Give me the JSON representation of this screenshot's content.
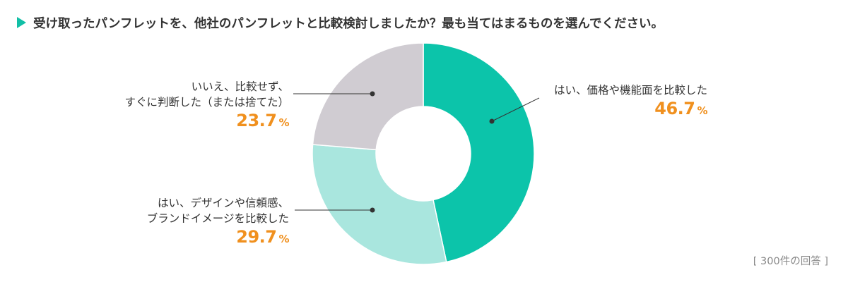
{
  "title": "受け取ったパンフレットを、他社のパンフレットと比較検討しましたか？最も当てはまるものを選んでください。",
  "footer_note": "[ 300件の回答 ]",
  "colors": {
    "accent": "#12BFA6",
    "slice_price": "#0CC4AA",
    "slice_design": "#A9E6DE",
    "slice_no": "#D0CCD2",
    "percent_text": "#F0901E"
  },
  "labels": {
    "price": {
      "line1": "はい、価格や機能面を比較した",
      "pct": "46.7",
      "unit": "%"
    },
    "design": {
      "line1": "はい、デザインや信頼感、",
      "line2": "ブランドイメージを比較した",
      "pct": "29.7",
      "unit": "%"
    },
    "no": {
      "line1": "いいえ、比較せず、",
      "line2": "すぐに判断した（または捨てた）",
      "pct": "23.7",
      "unit": "%"
    }
  },
  "chart_data": {
    "type": "pie",
    "variant": "donut",
    "title": "受け取ったパンフレットを、他社のパンフレットと比較検討しましたか？最も当てはまるものを選んでください。",
    "categories": [
      "はい、価格や機能面を比較した",
      "はい、デザインや信頼感、ブランドイメージを比較した",
      "いいえ、比較せず、すぐに判断した（または捨てた）"
    ],
    "values": [
      46.7,
      29.7,
      23.7
    ],
    "unit": "%",
    "colors": [
      "#0CC4AA",
      "#A9E6DE",
      "#D0CCD2"
    ],
    "start_angle": "12 o'clock, clockwise",
    "n_responses": 300,
    "annotation": "[ 300件の回答 ]"
  }
}
